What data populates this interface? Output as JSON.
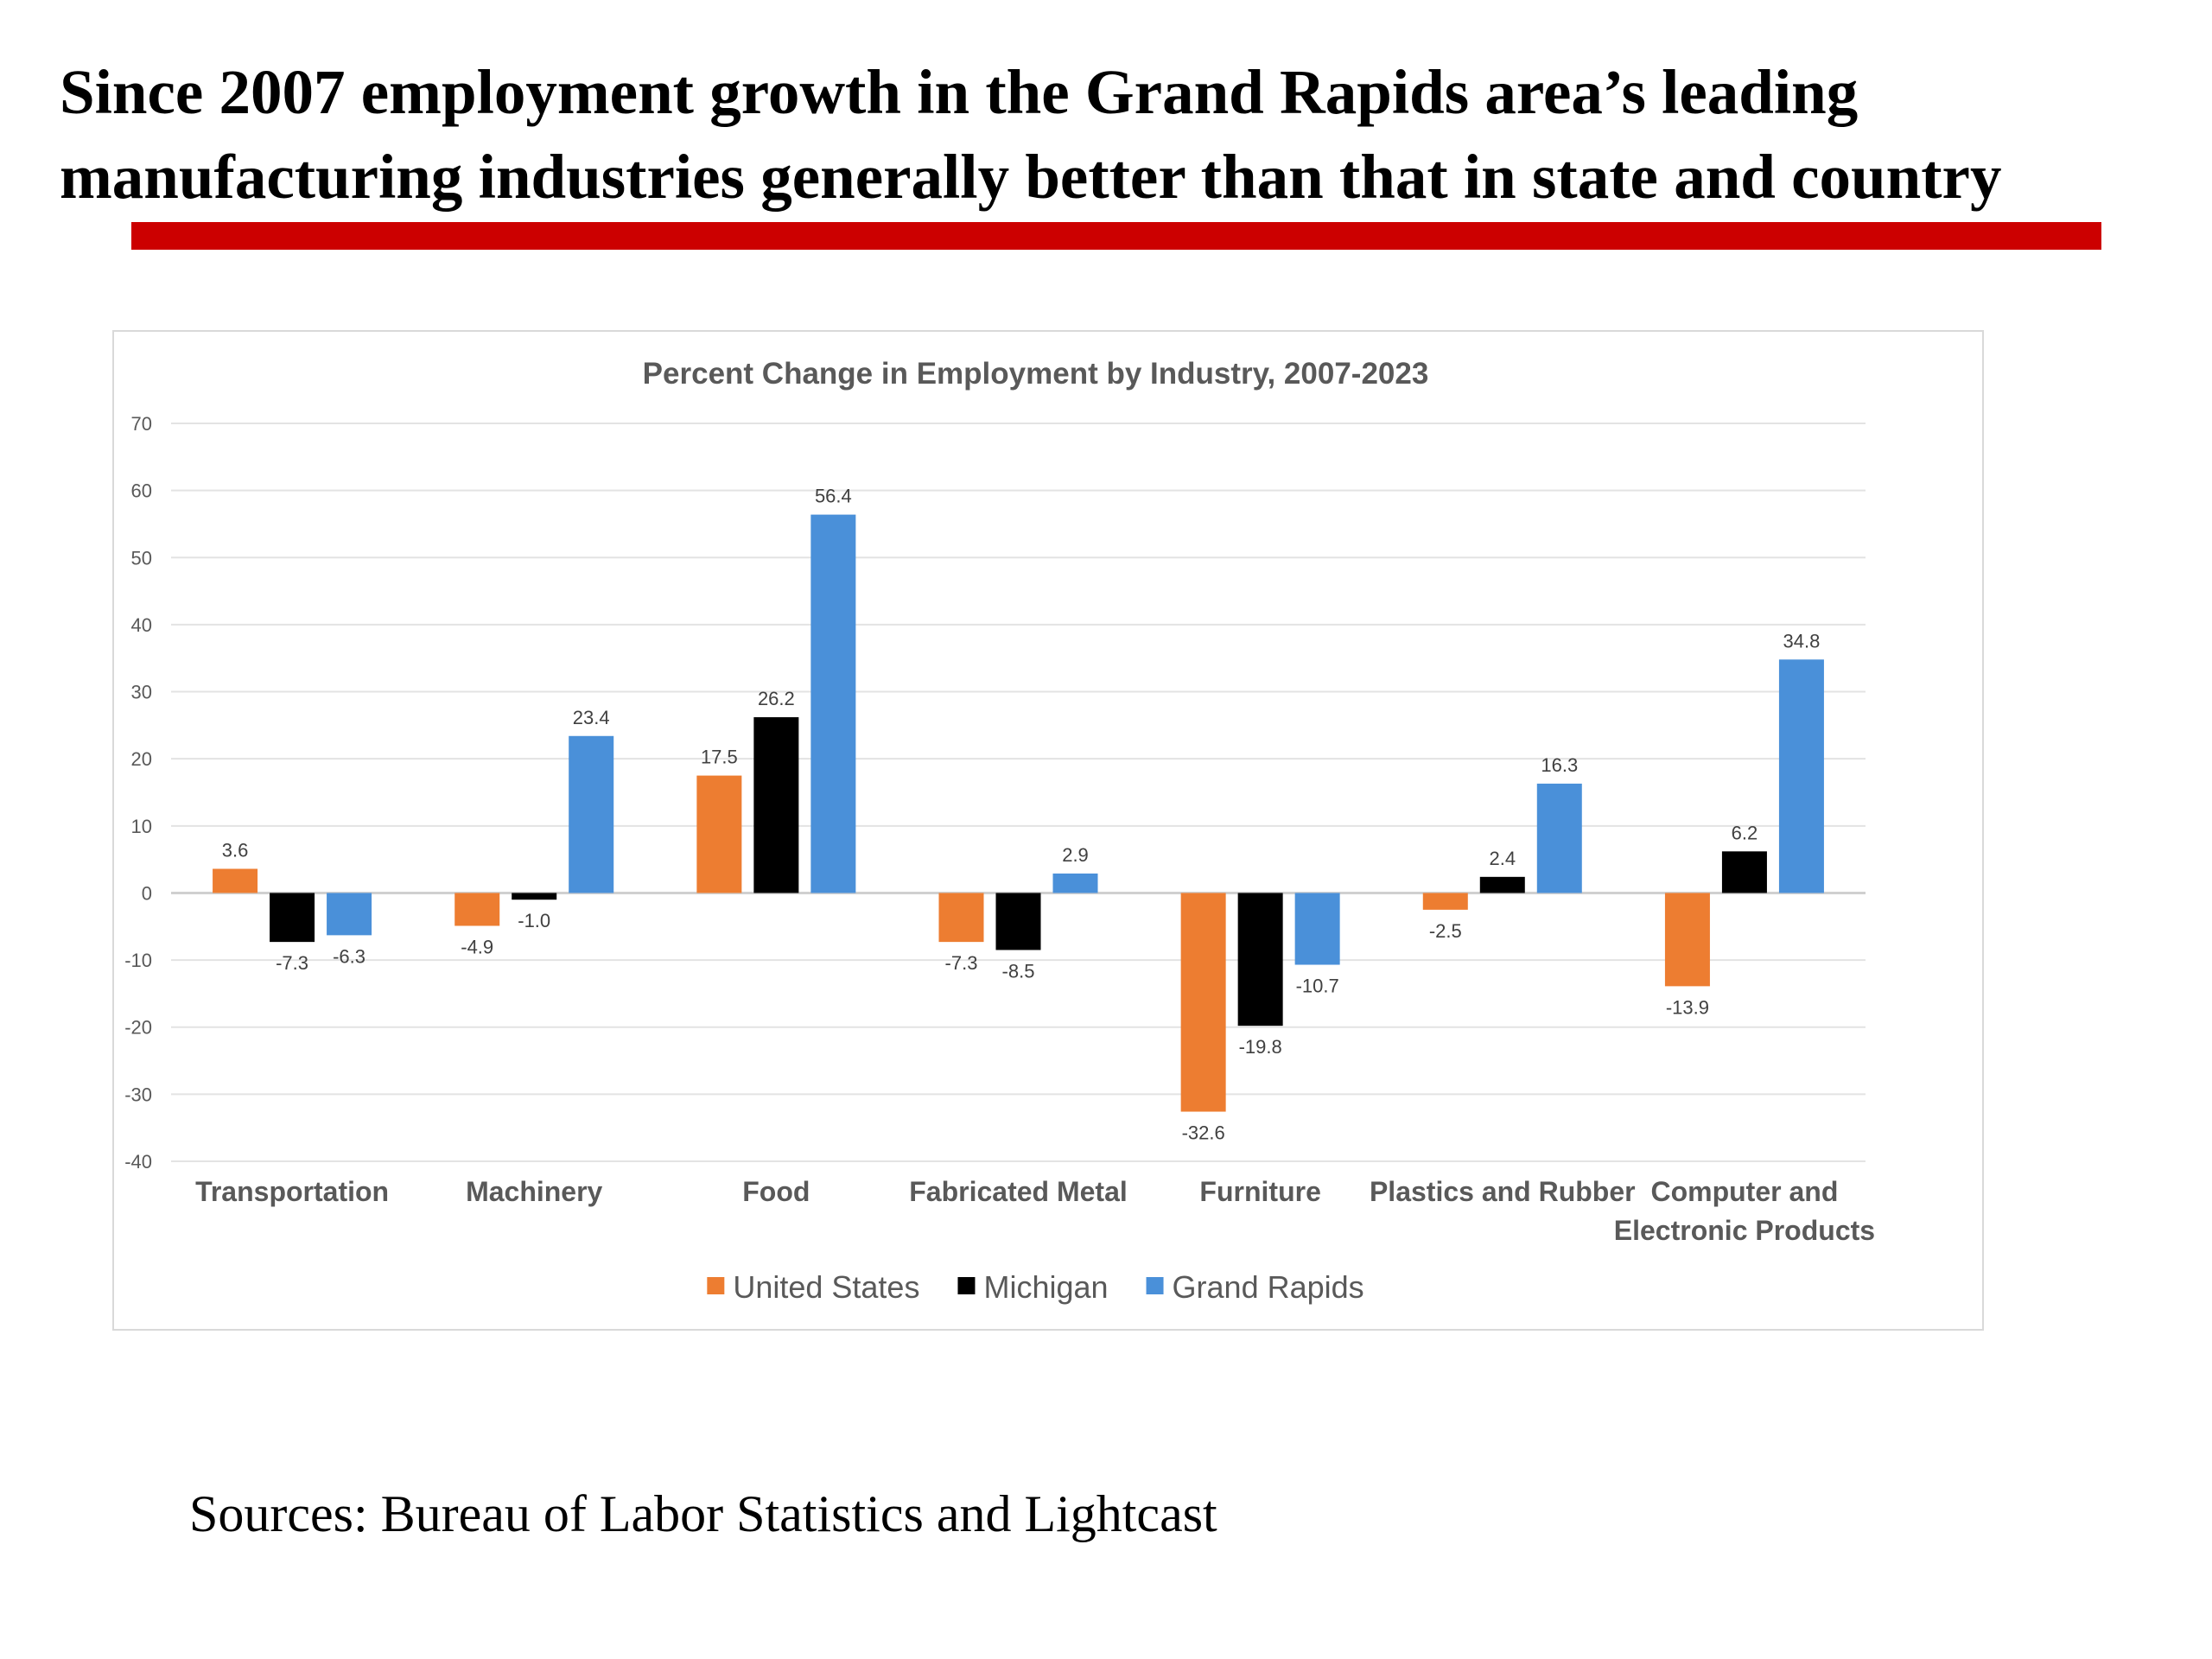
{
  "slide": {
    "title_line1": "Since 2007 employment growth in the Grand Rapids area’s leading",
    "title_line2": "manufacturing industries generally better than that in state and country",
    "accent_color": "#cc0000",
    "sources": "Sources: Bureau of Labor Statistics and Lightcast"
  },
  "chart_data": {
    "type": "bar",
    "title": "Percent Change in Employment by Industry, 2007-2023",
    "xlabel": "",
    "ylabel": "",
    "ylim": [
      -40,
      70
    ],
    "yticks": [
      70,
      60,
      50,
      40,
      30,
      20,
      10,
      0,
      -10,
      -20,
      -30,
      -40
    ],
    "grid": true,
    "legend_position": "bottom",
    "categories": [
      [
        "Transportation"
      ],
      [
        "Machinery"
      ],
      [
        "Food"
      ],
      [
        "Fabricated Metal"
      ],
      [
        "Furniture"
      ],
      [
        "Plastics and Rubber"
      ],
      [
        "Computer and",
        "Electronic Products"
      ]
    ],
    "series": [
      {
        "name": "United States",
        "color": "#ed7d31",
        "values": [
          3.6,
          -4.9,
          17.5,
          -7.3,
          -32.6,
          -2.5,
          -13.9
        ],
        "labels": [
          "3.6",
          "-4.9",
          "17.5",
          "-7.3",
          "-32.6",
          "-2.5",
          "-13.9"
        ]
      },
      {
        "name": "Michigan",
        "color": "#000000",
        "values": [
          -7.3,
          -1.0,
          26.2,
          -8.5,
          -19.8,
          2.4,
          6.2
        ],
        "labels": [
          "-7.3",
          "-1.0",
          "26.2",
          "-8.5",
          "-19.8",
          "2.4",
          "6.2"
        ]
      },
      {
        "name": "Grand Rapids",
        "color": "#4a90d9",
        "values": [
          -6.3,
          23.4,
          56.4,
          2.9,
          -10.7,
          16.3,
          34.8
        ],
        "labels": [
          "-6.3",
          "23.4",
          "56.4",
          "2.9",
          "-10.7",
          "16.3",
          "34.8"
        ]
      }
    ]
  }
}
